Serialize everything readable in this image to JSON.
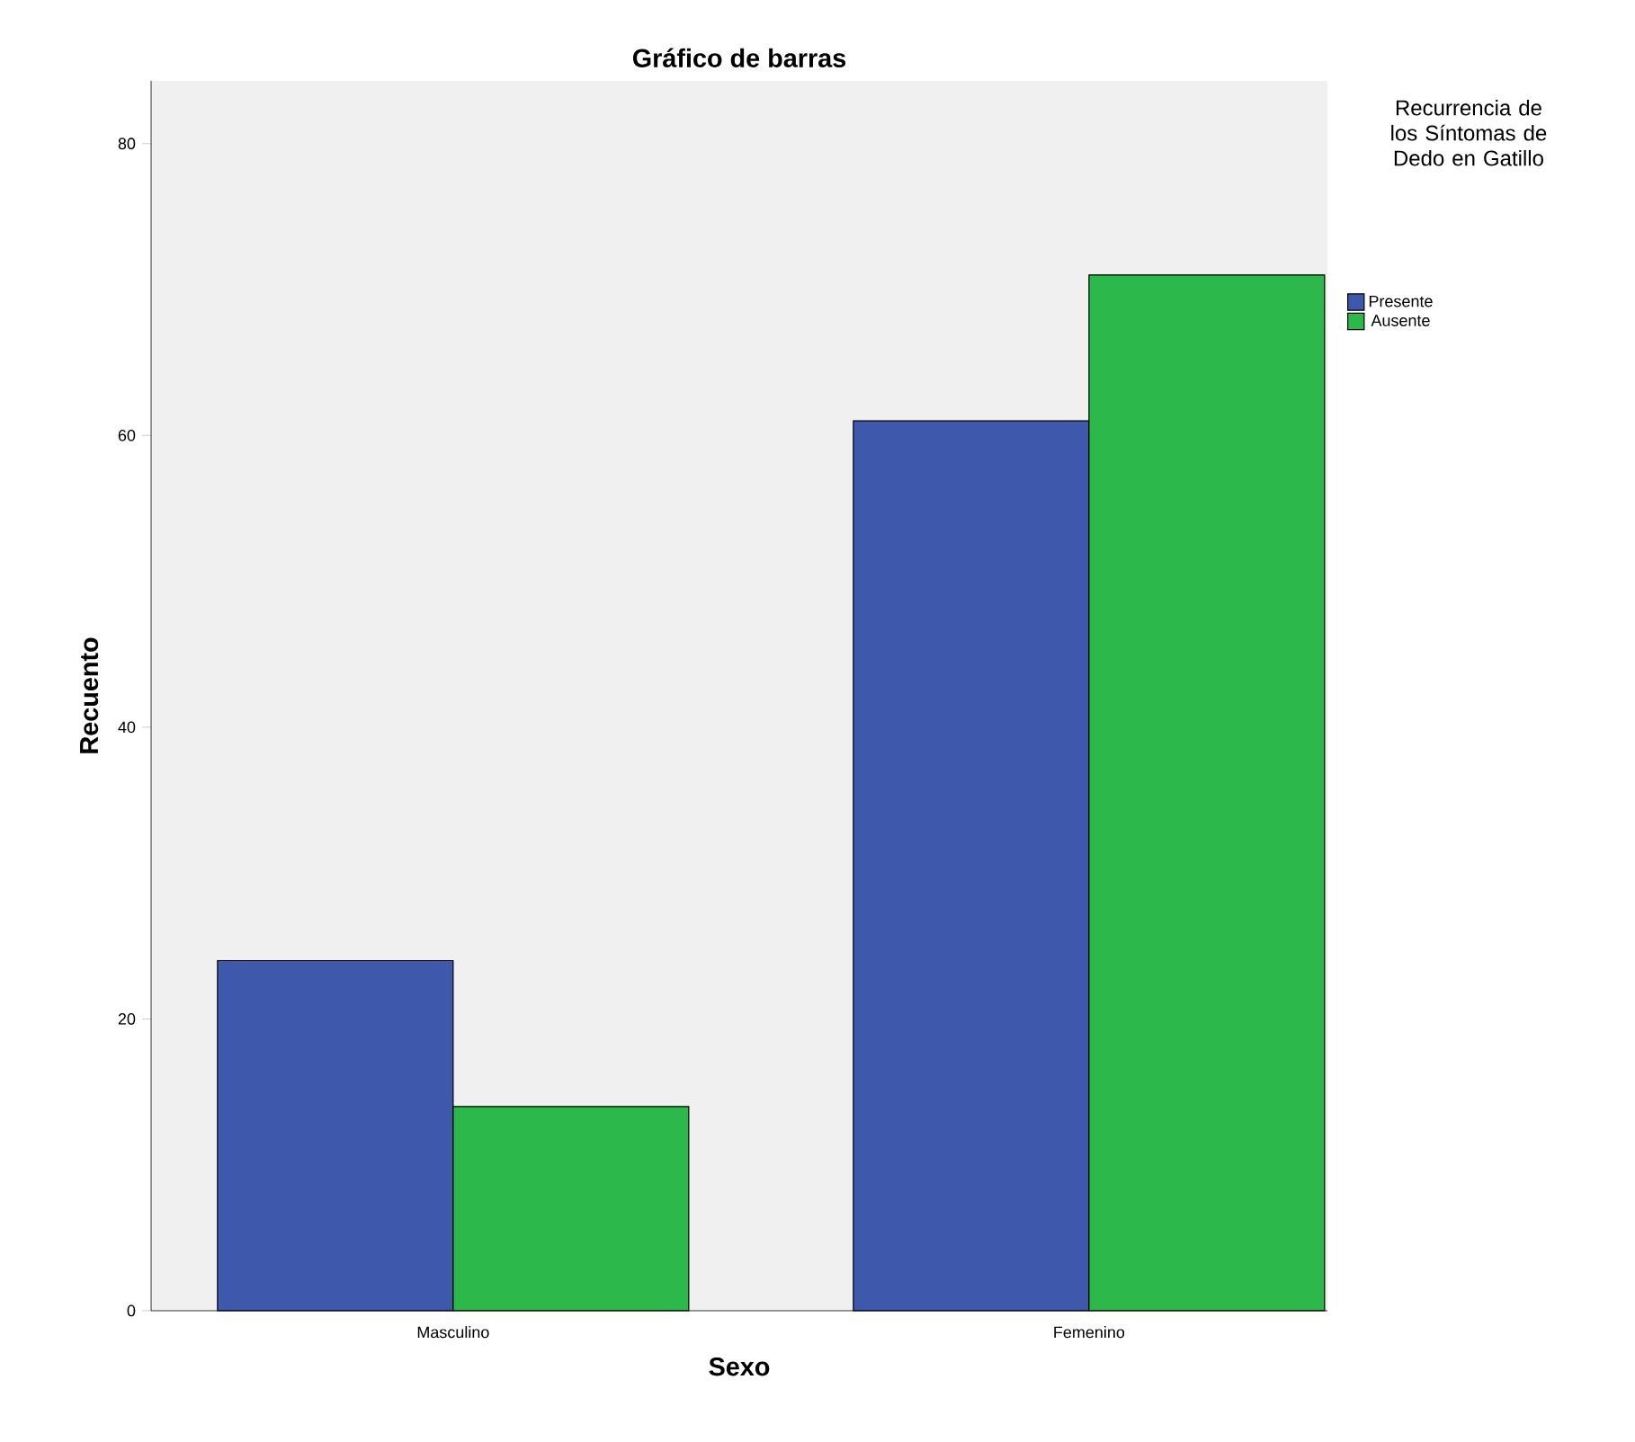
{
  "chart_data": {
    "type": "bar",
    "title": "Gráfico de barras",
    "xlabel": "Sexo",
    "ylabel": "Recuento",
    "legend_title": "Recurrencia de los Síntomas de Dedo en Gatillo",
    "categories": [
      "Masculino",
      "Femenino"
    ],
    "series": [
      {
        "name": "Presente",
        "color": "#3e58ac",
        "values": [
          24,
          61
        ]
      },
      {
        "name": "Ausente",
        "color": "#2db84b",
        "values": [
          14,
          71
        ]
      }
    ],
    "ylim": [
      0,
      84.3
    ],
    "yticks": [
      0,
      20,
      40,
      60,
      80
    ],
    "grid": false,
    "legend": "top right"
  }
}
